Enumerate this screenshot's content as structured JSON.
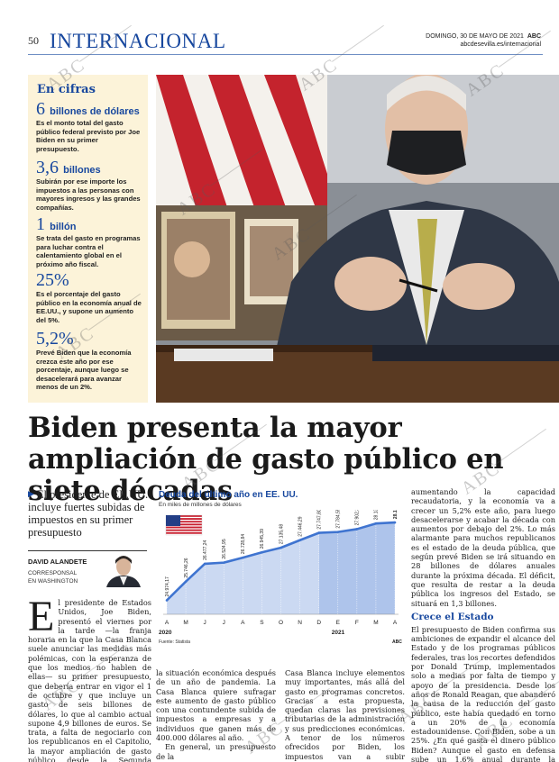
{
  "header": {
    "page_number": "50",
    "section": "INTERNACIONAL",
    "date": "DOMINGO, 30 DE MAYO DE 2021",
    "brand": "ABC",
    "website": "abcdesevilla.es/internacional"
  },
  "sidebar": {
    "title": "En cifras",
    "facts": [
      {
        "number": "6",
        "unit": "billones de dólares",
        "text": "Es el monto total del gasto público federal previsto por Joe Biden en su primer presupuesto."
      },
      {
        "number": "3,6",
        "unit": "billones",
        "text": "Subirán por ese importe los impuestos a las personas con mayores ingresos y las grandes compañías."
      },
      {
        "number": "1",
        "unit": "billón",
        "text": "Se trata del gasto en programas para luchar contra el calentamiento global en el próximo año fiscal."
      },
      {
        "number": "25%",
        "unit": "",
        "text": "Es el porcentaje del gasto público en la economía anual de EE.UU., y supone un aumento del 5%."
      },
      {
        "number": "5,2%",
        "unit": "",
        "text": "Prevé Biden que la economía crezca este año por ese porcentaje, aunque luego se desacelerará para avanzar menos de un 2%."
      }
    ]
  },
  "article": {
    "headline": "Biden presenta la mayor ampliación de gasto público en siete décadas",
    "deck": "El presidente de EE.UU. incluye fuertes subidas de impuestos en su primer presupuesto",
    "author": "DAVID ALANDETE",
    "author_role_1": "CORRESPONSAL",
    "author_role_2": "EN WASHINGTON",
    "dropcap": "E",
    "col1": "l presidente de Estados Unidos, Joe Biden, presentó el viernes por la tarde —la franja horaria en la que la Casa Blanca suele anunciar las medidas más polémicas, con la esperanza de que los medios no hablen de ellas— su primer presupuesto, que debería entrar en vigor el 1 de octubre y que incluye un gasto de seis billones de dólares, lo que al cambio actual supone 4,9 billones de euros. Se trata, a falta de negociarlo con los republicanos en el Capitolio, la mayor ampliación de gasto público desde la Segunda Guerra Mundial, señal de la gravedad de",
    "col2_p1": "la situación económica después de un año de pandemia. La Casa Blanca quiere sufragar este aumento de gasto público con una contundente subida de impuestos a empresas y a individuos que ganen más de 400.000 dólares al año.",
    "col2_p2": "En general, un presupuesto de la",
    "col3": "Casa Blanca incluye elementos muy importantes, más allá del gasto en programas concretos. Gracias a esta propuesta, quedan claras las previsiones tributarias de la administración y sus predicciones económicas. A tenor de los números ofrecidos por Biden, los impuestos van a subir notablemente,",
    "col4_p1": "aumentando la capacidad recaudatoria, y la economía va a crecer un 5,2% este año, para luego desacelerarse y acabar la década con aumentos por debajo del 2%. Lo más alarmante para muchos republicanos es el estado de la deuda pública, que según prevé Biden se irá situando en 28 billones de dólares anuales durante la próxima década. El déficit, que resulta de restar a la deuda pública los ingresos del Estado, se situará en 1,3 billones.",
    "subhead": "Crece el Estado",
    "col4_p2": "El presupuesto de Biden confirma sus ambiciones de expandir el alcance del Estado y de los programas públicos federales, tras los recortes defendidos por Donald Trump, implementados solo a medias por falta de tiempo y apoyo de la presidencia. Desde los años de Ronald Reagan, que abanderó la causa de la reducción del gasto público, este había quedado en torno a un 20% de la economía estadounidense. Con Biden, sobe a un 25%. ¿En qué gasta el dinero público Biden? Aunque el gasto en defensa sube un 1,6% anual durante la próxima década, según sus previsiones, donde"
  },
  "chart_data": {
    "type": "area",
    "title": "Deuda del último año en EE. UU.",
    "subtitle": "En miles de millones de dólares",
    "source": "Fuente: Statista",
    "credit": "ABC",
    "categories": [
      "A",
      "M",
      "J",
      "J",
      "A",
      "S",
      "O",
      "N",
      "D",
      "E",
      "F",
      "M",
      "A"
    ],
    "year_labels": [
      "2020",
      "2021"
    ],
    "values": [
      24974.17,
      25746.26,
      26477.24,
      26524.95,
      26728.84,
      26945.39,
      27135.48,
      27446.29,
      27747.8,
      27784.55,
      27902.36,
      28132.57,
      28174.71
    ],
    "value_labels": [
      "24.974,17",
      "25.746,26",
      "26.477,24",
      "26.524,95",
      "26.728,84",
      "26.945,39",
      "27.135,48",
      "27.446,29",
      "27.747,80",
      "27.784,55",
      "27.902,36",
      "28.132,57",
      "28.174,71"
    ],
    "ylim": [
      24400,
      28400
    ],
    "colors": {
      "line": "#3f74d0",
      "area_2020": "#cbd9f2",
      "area_2021": "#aec4eb"
    }
  },
  "watermark": "ABC"
}
